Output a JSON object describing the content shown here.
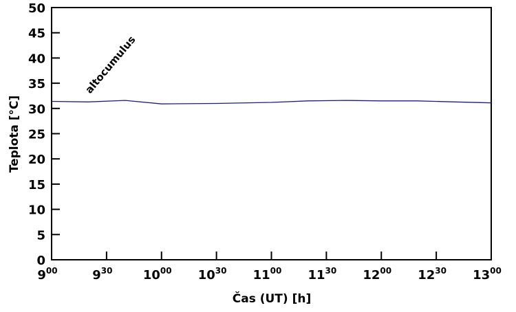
{
  "chart_data": {
    "type": "line",
    "title": "",
    "xlabel": "Čas (UT) [h]",
    "ylabel": "Teplota [°C]",
    "xlim": [
      9,
      13
    ],
    "ylim": [
      0,
      50
    ],
    "yticks": [
      "0",
      "5",
      "10",
      "15",
      "20",
      "25",
      "30",
      "35",
      "40",
      "45",
      "50"
    ],
    "xticks": [
      {
        "h": "9",
        "m": "00"
      },
      {
        "h": "9",
        "m": "30"
      },
      {
        "h": "10",
        "m": "00"
      },
      {
        "h": "10",
        "m": "30"
      },
      {
        "h": "11",
        "m": "00"
      },
      {
        "h": "11",
        "m": "30"
      },
      {
        "h": "12",
        "m": "00"
      },
      {
        "h": "12",
        "m": "30"
      },
      {
        "h": "13",
        "m": "00"
      }
    ],
    "annotation": "altocumulus",
    "series": [
      {
        "name": "Teplota",
        "color": "#1a1a8c",
        "x": [
          9.0,
          9.33,
          9.67,
          10.0,
          10.5,
          11.0,
          11.33,
          11.67,
          12.0,
          12.33,
          12.67,
          13.0
        ],
        "y": [
          31.4,
          31.3,
          31.6,
          30.9,
          31.0,
          31.2,
          31.5,
          31.6,
          31.5,
          31.5,
          31.3,
          31.1
        ]
      }
    ],
    "grid": false
  }
}
